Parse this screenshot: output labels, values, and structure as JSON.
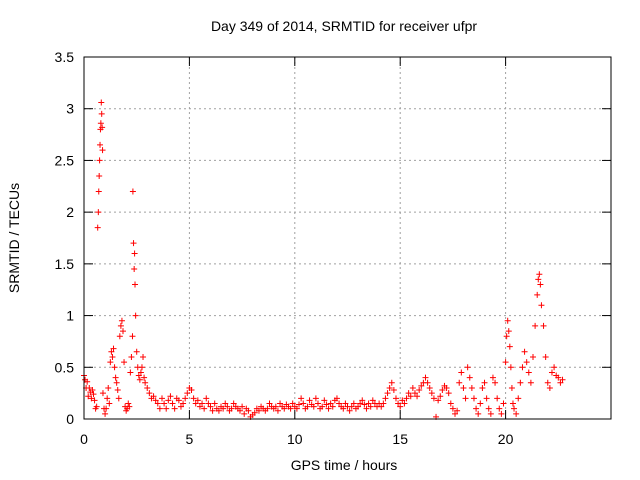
{
  "chart_data": {
    "type": "scatter",
    "title": "Day 349 of 2014, SRMTID for receiver ufpr",
    "xlabel": "GPS time / hours",
    "ylabel": "SRMTID / TECUs",
    "xlim": [
      0,
      25
    ],
    "ylim": [
      0,
      3.5
    ],
    "x_ticks": [
      0,
      5,
      10,
      15,
      20
    ],
    "x_tick_labels": [
      "0",
      "5",
      "10",
      "15",
      "20"
    ],
    "y_ticks": [
      0,
      0.5,
      1,
      1.5,
      2,
      2.5,
      3,
      3.5
    ],
    "y_tick_labels": [
      "0",
      "0.5",
      "1",
      "1.5",
      "2",
      "2.5",
      "3",
      "3.5"
    ],
    "grid": true,
    "marker": "+",
    "series": [
      {
        "name": "SRMTID",
        "color": "#ff0000",
        "points": [
          [
            0.0,
            0.42
          ],
          [
            0.05,
            0.38
          ],
          [
            0.1,
            0.3
          ],
          [
            0.15,
            0.36
          ],
          [
            0.2,
            0.22
          ],
          [
            0.25,
            0.3
          ],
          [
            0.3,
            0.26
          ],
          [
            0.35,
            0.2
          ],
          [
            0.4,
            0.28
          ],
          [
            0.45,
            0.24
          ],
          [
            0.5,
            0.18
          ],
          [
            0.55,
            0.1
          ],
          [
            0.6,
            0.12
          ],
          [
            0.65,
            1.85
          ],
          [
            0.68,
            2.0
          ],
          [
            0.7,
            2.2
          ],
          [
            0.72,
            2.35
          ],
          [
            0.74,
            2.5
          ],
          [
            0.76,
            2.65
          ],
          [
            0.78,
            2.8
          ],
          [
            0.8,
            2.86
          ],
          [
            0.82,
            3.06
          ],
          [
            0.84,
            2.95
          ],
          [
            0.86,
            2.82
          ],
          [
            0.88,
            2.6
          ],
          [
            0.9,
            0.25
          ],
          [
            0.95,
            0.1
          ],
          [
            1.0,
            0.05
          ],
          [
            1.05,
            0.1
          ],
          [
            1.1,
            0.2
          ],
          [
            1.15,
            0.3
          ],
          [
            1.2,
            0.15
          ],
          [
            1.25,
            0.55
          ],
          [
            1.3,
            0.65
          ],
          [
            1.35,
            0.6
          ],
          [
            1.4,
            0.68
          ],
          [
            1.45,
            0.5
          ],
          [
            1.5,
            0.4
          ],
          [
            1.55,
            0.35
          ],
          [
            1.6,
            0.28
          ],
          [
            1.65,
            0.2
          ],
          [
            1.7,
            0.8
          ],
          [
            1.75,
            0.9
          ],
          [
            1.8,
            0.95
          ],
          [
            1.85,
            0.85
          ],
          [
            1.9,
            0.55
          ],
          [
            1.95,
            0.12
          ],
          [
            2.0,
            0.08
          ],
          [
            2.05,
            0.1
          ],
          [
            2.1,
            0.15
          ],
          [
            2.15,
            0.12
          ],
          [
            2.2,
            0.45
          ],
          [
            2.25,
            0.6
          ],
          [
            2.3,
            0.8
          ],
          [
            2.32,
            2.2
          ],
          [
            2.35,
            1.7
          ],
          [
            2.38,
            1.45
          ],
          [
            2.4,
            1.6
          ],
          [
            2.42,
            1.3
          ],
          [
            2.45,
            1.0
          ],
          [
            2.5,
            0.65
          ],
          [
            2.55,
            0.5
          ],
          [
            2.6,
            0.42
          ],
          [
            2.65,
            0.38
          ],
          [
            2.7,
            0.45
          ],
          [
            2.75,
            0.5
          ],
          [
            2.8,
            0.6
          ],
          [
            2.85,
            0.4
          ],
          [
            2.9,
            0.35
          ],
          [
            3.0,
            0.3
          ],
          [
            3.1,
            0.25
          ],
          [
            3.2,
            0.2
          ],
          [
            3.3,
            0.22
          ],
          [
            3.4,
            0.18
          ],
          [
            3.5,
            0.15
          ],
          [
            3.6,
            0.1
          ],
          [
            3.7,
            0.2
          ],
          [
            3.8,
            0.15
          ],
          [
            3.9,
            0.1
          ],
          [
            4.0,
            0.18
          ],
          [
            4.1,
            0.22
          ],
          [
            4.2,
            0.15
          ],
          [
            4.3,
            0.1
          ],
          [
            4.4,
            0.2
          ],
          [
            4.5,
            0.18
          ],
          [
            4.6,
            0.12
          ],
          [
            4.7,
            0.15
          ],
          [
            4.8,
            0.2
          ],
          [
            4.9,
            0.25
          ],
          [
            5.0,
            0.3
          ],
          [
            5.1,
            0.28
          ],
          [
            5.2,
            0.2
          ],
          [
            5.3,
            0.15
          ],
          [
            5.4,
            0.18
          ],
          [
            5.5,
            0.12
          ],
          [
            5.6,
            0.15
          ],
          [
            5.7,
            0.1
          ],
          [
            5.8,
            0.2
          ],
          [
            5.9,
            0.15
          ],
          [
            6.0,
            0.12
          ],
          [
            6.1,
            0.08
          ],
          [
            6.2,
            0.15
          ],
          [
            6.3,
            0.1
          ],
          [
            6.4,
            0.08
          ],
          [
            6.5,
            0.12
          ],
          [
            6.6,
            0.1
          ],
          [
            6.7,
            0.15
          ],
          [
            6.8,
            0.12
          ],
          [
            6.9,
            0.08
          ],
          [
            7.0,
            0.1
          ],
          [
            7.1,
            0.15
          ],
          [
            7.2,
            0.12
          ],
          [
            7.3,
            0.1
          ],
          [
            7.4,
            0.08
          ],
          [
            7.5,
            0.12
          ],
          [
            7.6,
            0.05
          ],
          [
            7.7,
            0.1
          ],
          [
            7.8,
            0.08
          ],
          [
            7.9,
            0.02
          ],
          [
            8.0,
            0.04
          ],
          [
            8.1,
            0.06
          ],
          [
            8.2,
            0.1
          ],
          [
            8.3,
            0.08
          ],
          [
            8.4,
            0.12
          ],
          [
            8.5,
            0.1
          ],
          [
            8.6,
            0.08
          ],
          [
            8.7,
            0.1
          ],
          [
            8.8,
            0.15
          ],
          [
            8.9,
            0.12
          ],
          [
            9.0,
            0.1
          ],
          [
            9.1,
            0.12
          ],
          [
            9.2,
            0.08
          ],
          [
            9.3,
            0.15
          ],
          [
            9.4,
            0.12
          ],
          [
            9.5,
            0.1
          ],
          [
            9.6,
            0.14
          ],
          [
            9.7,
            0.12
          ],
          [
            9.8,
            0.1
          ],
          [
            9.9,
            0.15
          ],
          [
            10.0,
            0.12
          ],
          [
            10.1,
            0.1
          ],
          [
            10.2,
            0.14
          ],
          [
            10.3,
            0.2
          ],
          [
            10.4,
            0.15
          ],
          [
            10.5,
            0.1
          ],
          [
            10.6,
            0.12
          ],
          [
            10.7,
            0.18
          ],
          [
            10.8,
            0.14
          ],
          [
            10.9,
            0.12
          ],
          [
            11.0,
            0.2
          ],
          [
            11.1,
            0.15
          ],
          [
            11.2,
            0.1
          ],
          [
            11.3,
            0.12
          ],
          [
            11.4,
            0.18
          ],
          [
            11.5,
            0.14
          ],
          [
            11.6,
            0.1
          ],
          [
            11.7,
            0.15
          ],
          [
            11.8,
            0.12
          ],
          [
            11.9,
            0.18
          ],
          [
            12.0,
            0.2
          ],
          [
            12.1,
            0.15
          ],
          [
            12.2,
            0.12
          ],
          [
            12.3,
            0.1
          ],
          [
            12.4,
            0.15
          ],
          [
            12.5,
            0.12
          ],
          [
            12.6,
            0.08
          ],
          [
            12.7,
            0.12
          ],
          [
            12.8,
            0.15
          ],
          [
            12.9,
            0.1
          ],
          [
            13.0,
            0.12
          ],
          [
            13.1,
            0.15
          ],
          [
            13.2,
            0.18
          ],
          [
            13.3,
            0.14
          ],
          [
            13.4,
            0.1
          ],
          [
            13.5,
            0.15
          ],
          [
            13.6,
            0.12
          ],
          [
            13.7,
            0.18
          ],
          [
            13.8,
            0.15
          ],
          [
            13.9,
            0.12
          ],
          [
            14.0,
            0.15
          ],
          [
            14.1,
            0.12
          ],
          [
            14.2,
            0.15
          ],
          [
            14.3,
            0.2
          ],
          [
            14.4,
            0.25
          ],
          [
            14.5,
            0.3
          ],
          [
            14.6,
            0.35
          ],
          [
            14.7,
            0.28
          ],
          [
            14.8,
            0.2
          ],
          [
            14.9,
            0.15
          ],
          [
            15.0,
            0.12
          ],
          [
            15.1,
            0.18
          ],
          [
            15.2,
            0.15
          ],
          [
            15.3,
            0.2
          ],
          [
            15.4,
            0.25
          ],
          [
            15.5,
            0.22
          ],
          [
            15.6,
            0.3
          ],
          [
            15.7,
            0.25
          ],
          [
            15.8,
            0.22
          ],
          [
            15.9,
            0.28
          ],
          [
            16.0,
            0.32
          ],
          [
            16.1,
            0.35
          ],
          [
            16.2,
            0.4
          ],
          [
            16.3,
            0.35
          ],
          [
            16.4,
            0.3
          ],
          [
            16.5,
            0.25
          ],
          [
            16.6,
            0.2
          ],
          [
            16.7,
            0.02
          ],
          [
            16.8,
            0.18
          ],
          [
            16.9,
            0.22
          ],
          [
            17.0,
            0.28
          ],
          [
            17.1,
            0.32
          ],
          [
            17.2,
            0.3
          ],
          [
            17.3,
            0.25
          ],
          [
            17.4,
            0.15
          ],
          [
            17.5,
            0.1
          ],
          [
            17.6,
            0.05
          ],
          [
            17.7,
            0.08
          ],
          [
            17.8,
            0.35
          ],
          [
            17.9,
            0.45
          ],
          [
            18.0,
            0.3
          ],
          [
            18.1,
            0.2
          ],
          [
            18.2,
            0.5
          ],
          [
            18.3,
            0.4
          ],
          [
            18.4,
            0.3
          ],
          [
            18.5,
            0.2
          ],
          [
            18.6,
            0.1
          ],
          [
            18.7,
            0.05
          ],
          [
            18.8,
            0.15
          ],
          [
            18.9,
            0.3
          ],
          [
            19.0,
            0.35
          ],
          [
            19.1,
            0.2
          ],
          [
            19.2,
            0.1
          ],
          [
            19.3,
            0.05
          ],
          [
            19.4,
            0.4
          ],
          [
            19.5,
            0.35
          ],
          [
            19.6,
            0.2
          ],
          [
            19.7,
            0.1
          ],
          [
            19.8,
            0.05
          ],
          [
            19.9,
            0.15
          ],
          [
            20.0,
            0.55
          ],
          [
            20.05,
            0.8
          ],
          [
            20.1,
            0.95
          ],
          [
            20.15,
            0.85
          ],
          [
            20.2,
            0.7
          ],
          [
            20.25,
            0.5
          ],
          [
            20.3,
            0.3
          ],
          [
            20.35,
            0.15
          ],
          [
            20.4,
            0.1
          ],
          [
            20.5,
            0.05
          ],
          [
            20.6,
            0.2
          ],
          [
            20.7,
            0.35
          ],
          [
            20.8,
            0.5
          ],
          [
            20.9,
            0.65
          ],
          [
            21.0,
            0.55
          ],
          [
            21.1,
            0.45
          ],
          [
            21.2,
            0.35
          ],
          [
            21.3,
            0.6
          ],
          [
            21.4,
            0.9
          ],
          [
            21.5,
            1.2
          ],
          [
            21.55,
            1.35
          ],
          [
            21.6,
            1.4
          ],
          [
            21.65,
            1.3
          ],
          [
            21.7,
            1.1
          ],
          [
            21.8,
            0.9
          ],
          [
            21.9,
            0.6
          ],
          [
            22.0,
            0.35
          ],
          [
            22.1,
            0.3
          ],
          [
            22.2,
            0.45
          ],
          [
            22.3,
            0.5
          ],
          [
            22.4,
            0.42
          ],
          [
            22.5,
            0.4
          ],
          [
            22.6,
            0.35
          ],
          [
            22.7,
            0.38
          ]
        ]
      }
    ]
  }
}
